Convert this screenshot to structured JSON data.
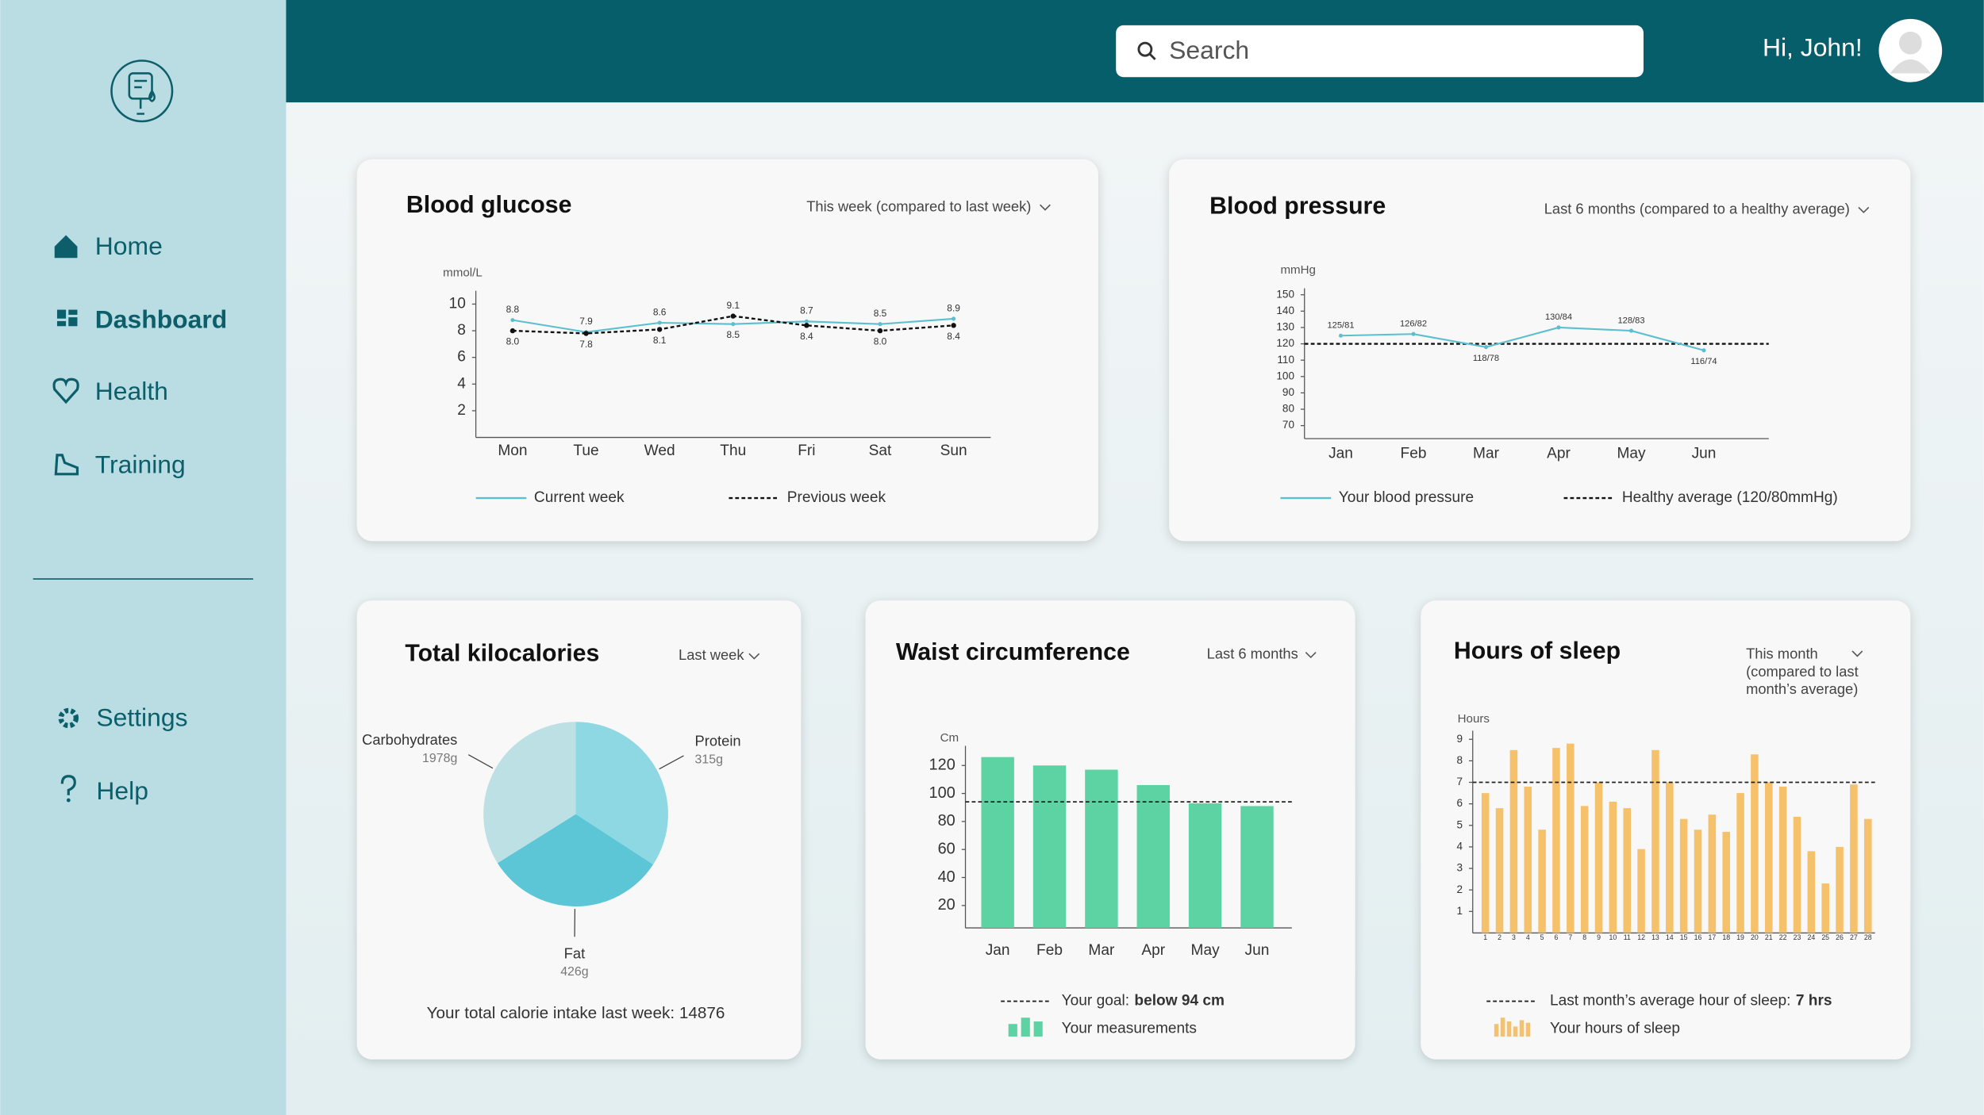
{
  "sidebar": {
    "nav": [
      "Home",
      "Dashboard",
      "Health",
      "Training"
    ],
    "active": 1,
    "bottom": [
      "Settings",
      "Help"
    ]
  },
  "header": {
    "search_placeholder": "Search",
    "greeting": "Hi, John!"
  },
  "chart_data": [
    {
      "type": "line",
      "title": "Blood glucose",
      "filter": "This week (compared to last week)",
      "y_label": "mmol/L",
      "categories": [
        "Mon",
        "Tue",
        "Wed",
        "Thu",
        "Fri",
        "Sat",
        "Sun"
      ],
      "ylim": [
        0,
        11
      ],
      "yticks": [
        2,
        4,
        6,
        8,
        10
      ],
      "series": [
        {
          "name": "Current week",
          "color": "#5bbfcf",
          "style": "solid",
          "values": [
            8.8,
            7.9,
            8.6,
            8.5,
            8.7,
            8.5,
            8.9
          ],
          "value_labels": [
            "8.8",
            "7.9",
            "8.6",
            "8.5",
            "8.7",
            "8.5",
            "8.9"
          ]
        },
        {
          "name": "Previous week",
          "color": "#111111",
          "style": "dashed",
          "values": [
            8.0,
            7.8,
            8.1,
            9.1,
            8.4,
            8.0,
            8.4
          ],
          "value_labels": [
            "8.0",
            "7.8",
            "8.1",
            "9.1",
            "8.4",
            "8.0",
            "8.4"
          ]
        }
      ]
    },
    {
      "type": "line",
      "title": "Blood pressure",
      "filter": "Last 6 months (compared to a healthy average)",
      "y_label": "mmHg",
      "categories": [
        "Jan",
        "Feb",
        "Mar",
        "Apr",
        "May",
        "Jun"
      ],
      "ylim": [
        62,
        154
      ],
      "yticks": [
        70,
        80,
        90,
        100,
        110,
        120,
        130,
        140,
        150
      ],
      "series": [
        {
          "name": "Your blood pressure",
          "color": "#5bbfcf",
          "style": "solid",
          "values": [
            125,
            126,
            118,
            130,
            128,
            116
          ],
          "value_labels": [
            "125/81",
            "126/82",
            "118/78",
            "130/84",
            "128/83",
            "116/74"
          ]
        }
      ],
      "reference": {
        "name": "Healthy average (120/80mmHg)",
        "value": 120,
        "color": "#111111"
      }
    },
    {
      "type": "pie",
      "title": "Total kilocalories",
      "filter": "Last week",
      "categories": [
        "Protein",
        "Fat",
        "Carbohydrates"
      ],
      "values": [
        34.2,
        31.9,
        33.9
      ],
      "amounts": [
        "315g",
        "426g",
        "1978g"
      ],
      "colors": [
        "#8dd8e3",
        "#5cc5d6",
        "#bde0e5"
      ],
      "note": "Your total calorie intake last week: 14876"
    },
    {
      "type": "bar",
      "title": "Waist circumference",
      "filter": "Last 6 months",
      "y_label": "Cm",
      "categories": [
        "Jan",
        "Feb",
        "Mar",
        "Apr",
        "May",
        "Jun"
      ],
      "values": [
        126,
        120,
        117,
        106,
        93,
        91
      ],
      "color": "#5dd3a3",
      "ylim": [
        4,
        134
      ],
      "yticks": [
        20,
        40,
        60,
        80,
        100,
        120
      ],
      "reference": {
        "value": 94,
        "label": "Your goal:",
        "label_bold": "below 94 cm"
      },
      "series_name": "Your measurements"
    },
    {
      "type": "bar",
      "title": "Hours of sleep",
      "filter": [
        "This month",
        "(compared to last",
        "month’s average)"
      ],
      "y_label": "Hours",
      "categories": [
        1,
        2,
        3,
        4,
        5,
        6,
        7,
        8,
        9,
        10,
        11,
        12,
        13,
        14,
        15,
        16,
        17,
        18,
        19,
        20,
        21,
        22,
        23,
        24,
        25,
        26,
        27,
        28
      ],
      "values": [
        6.5,
        5.8,
        8.5,
        6.8,
        4.8,
        8.6,
        8.8,
        5.9,
        7.0,
        6.1,
        5.8,
        3.9,
        8.5,
        7.0,
        5.3,
        4.8,
        5.5,
        4.7,
        6.5,
        8.3,
        7.0,
        6.8,
        5.4,
        3.8,
        2.3,
        4.0,
        6.9,
        5.3
      ],
      "color": "#f5c26b",
      "ylim": [
        0,
        9.4
      ],
      "yticks": [
        1,
        2,
        3,
        4,
        5,
        6,
        7,
        8,
        9
      ],
      "reference": {
        "value": 7,
        "label": "Last month’s average hour of sleep:",
        "label_bold": "7 hrs"
      },
      "series_name": "Your hours of sleep"
    }
  ]
}
